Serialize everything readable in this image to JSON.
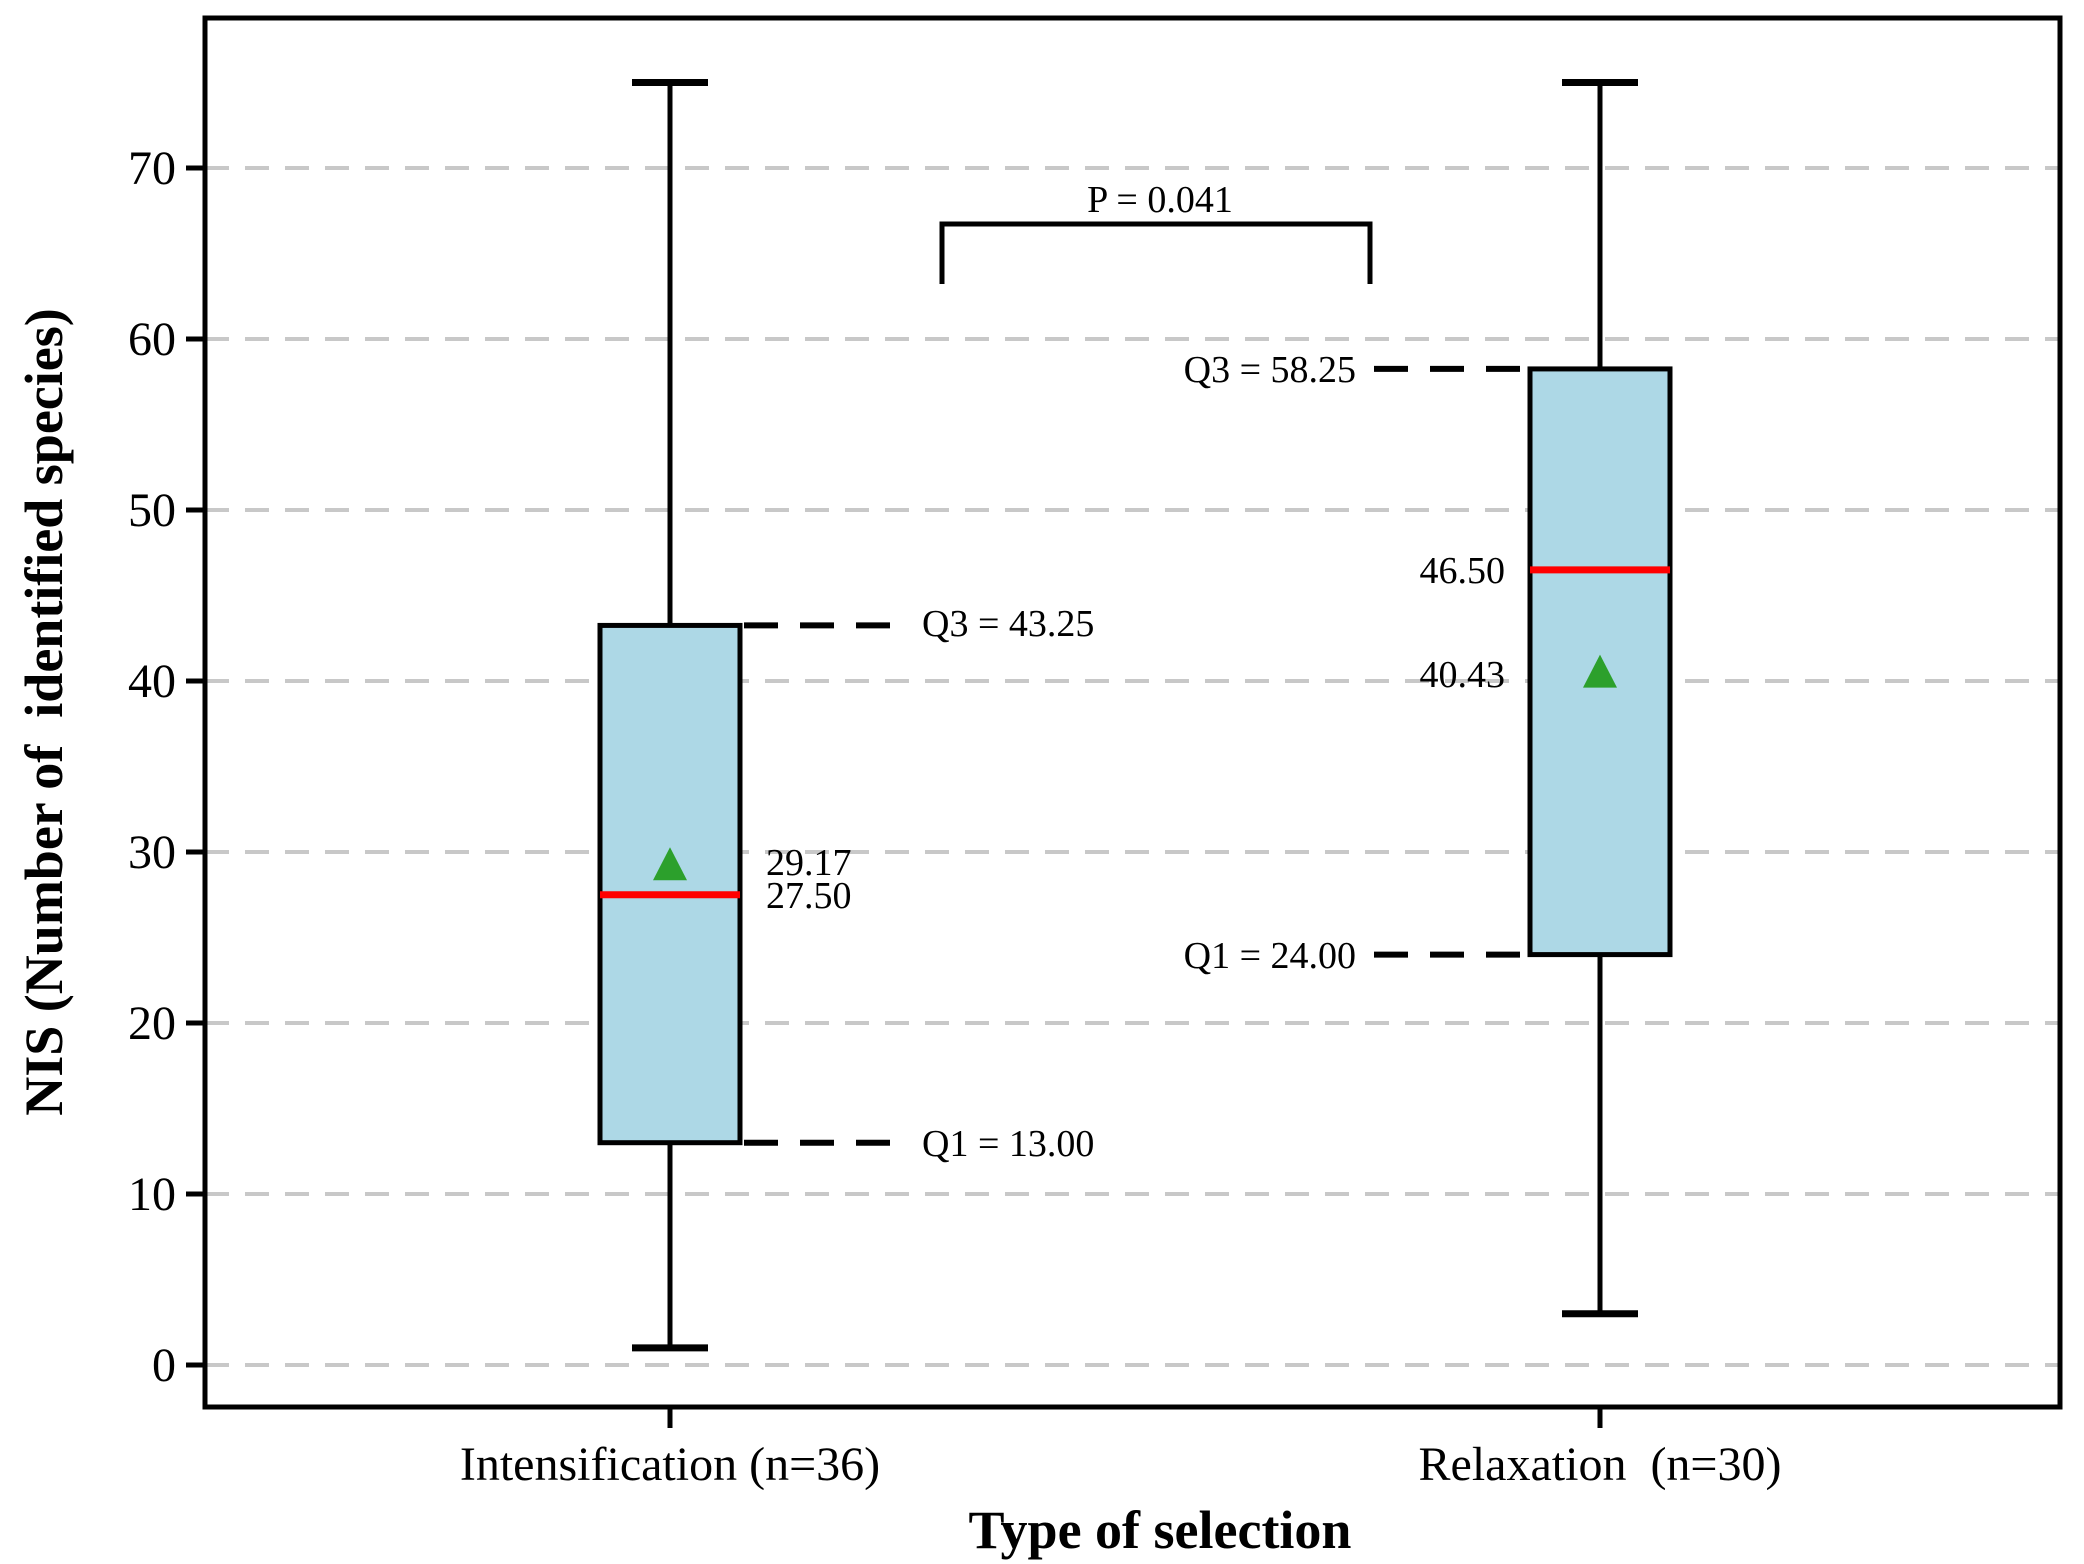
{
  "figure": {
    "background": "#ffffff"
  },
  "axes": {
    "ylabel": "NIS (Number of  identified species)",
    "xlabel": "Type of selection",
    "ytick_labels": [
      "0",
      "10",
      "20",
      "30",
      "40",
      "50",
      "60",
      "70"
    ],
    "ytick_values": [
      0,
      10,
      20,
      30,
      40,
      50,
      60,
      70
    ],
    "ylim": [
      -2.5,
      78.8
    ],
    "grid": {
      "visible": true,
      "style": "dashed",
      "color": "#c8c8c8"
    }
  },
  "chart_data": {
    "type": "boxplot",
    "title": "",
    "xlabel": "Type of selection",
    "ylabel": "NIS (Number of  identified species)",
    "categories": [
      "Intensification (n=36)",
      "Relaxation  (n=30)"
    ],
    "series": [
      {
        "name": "Intensification",
        "n": 36,
        "whisker_low": 1,
        "q1": 13.0,
        "median": 27.5,
        "mean": 29.17,
        "q3": 43.25,
        "whisker_high": 75,
        "label_side": "right",
        "annotations": {
          "q3_label": "Q3 = 43.25",
          "q1_label": "Q1 = 13.00",
          "mean_label": "29.17",
          "median_label": "27.50"
        }
      },
      {
        "name": "Relaxation",
        "n": 30,
        "whisker_low": 3,
        "q1": 24.0,
        "median": 46.5,
        "mean": 40.43,
        "q3": 58.25,
        "whisker_high": 75,
        "label_side": "left",
        "annotations": {
          "q3_label": "Q3 = 58.25",
          "q1_label": "Q1 = 24.00",
          "mean_label": "40.43",
          "median_label": "46.50"
        }
      }
    ],
    "significance": {
      "label": "P = 0.041",
      "between": [
        "Intensification",
        "Relaxation"
      ]
    },
    "style": {
      "box_fill": "#add8e6",
      "box_edge": "#000000",
      "median_color": "#ff0000",
      "mean_marker_color": "#2ca02c",
      "whisker_color": "#000000",
      "grid_color": "#c8c8c8",
      "callout_dash_color": "#000000"
    }
  }
}
